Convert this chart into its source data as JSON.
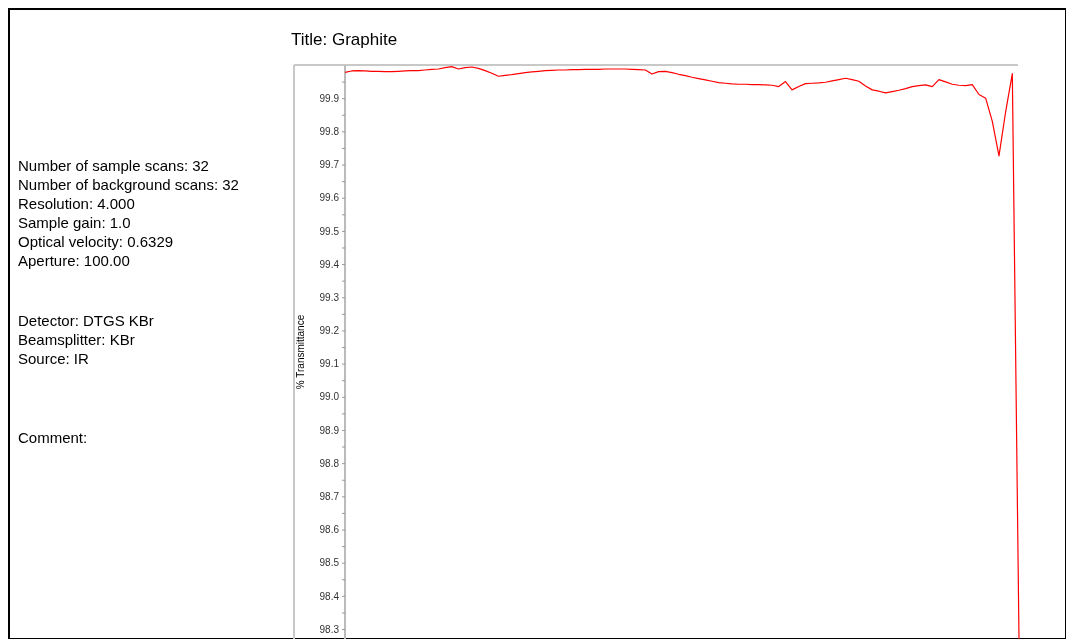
{
  "chart_data": {
    "type": "line",
    "title": "Title:  Graphite",
    "ylabel": "% Transmittance",
    "annotations": [
      "Number of sample scans:  32",
      "Number of background scans:  32",
      "Resolution:   4.000",
      "Sample gain:  1.0",
      "Optical velocity:  0.6329",
      "Aperture:  100.00",
      "Detector:  DTGS KBr",
      "Beamsplitter:  KBr",
      "Source:  IR",
      "Comment:"
    ],
    "categories": [
      null,
      null,
      null,
      null,
      null,
      null,
      null,
      null,
      null,
      null,
      null,
      null,
      null,
      null,
      null,
      null,
      null,
      null,
      null,
      null,
      null,
      null,
      null,
      null,
      null,
      null,
      null,
      null,
      null,
      null,
      null,
      null,
      null,
      null,
      null,
      null,
      null,
      null,
      null,
      null,
      null,
      null,
      null,
      null,
      null,
      null,
      null,
      null,
      null,
      null,
      null,
      null,
      null,
      null,
      null,
      null,
      null,
      null,
      null,
      null,
      null,
      null,
      null,
      null,
      null,
      null,
      null,
      null,
      null,
      null,
      null,
      null,
      null,
      null,
      null,
      null,
      null,
      null,
      null,
      null,
      null,
      null,
      null,
      null,
      null,
      null,
      null,
      null,
      null,
      null,
      null,
      null,
      null,
      null,
      null,
      null,
      null,
      null,
      null,
      null,
      null,
      null
    ],
    "ylim": [
      98.27,
      100.0
    ],
    "yticks": [
      {
        "value": 98.3,
        "label": "98.3"
      },
      {
        "value": 98.35,
        "label": null
      },
      {
        "value": 98.4,
        "label": "98.4"
      },
      {
        "value": 98.45,
        "label": null
      },
      {
        "value": 98.5,
        "label": "98.5"
      },
      {
        "value": 98.55,
        "label": null
      },
      {
        "value": 98.6,
        "label": "98.6"
      },
      {
        "value": 98.65,
        "label": null
      },
      {
        "value": 98.7,
        "label": "98.7"
      },
      {
        "value": 98.75,
        "label": null
      },
      {
        "value": 98.8,
        "label": "98.8"
      },
      {
        "value": 98.85,
        "label": null
      },
      {
        "value": 98.9,
        "label": "98.9"
      },
      {
        "value": 98.95,
        "label": null
      },
      {
        "value": 99.0,
        "label": "99.0"
      },
      {
        "value": 99.05,
        "label": null
      },
      {
        "value": 99.1,
        "label": "99.1"
      },
      {
        "value": 99.15,
        "label": null
      },
      {
        "value": 99.2,
        "label": "99.2"
      },
      {
        "value": 99.25,
        "label": null
      },
      {
        "value": 99.3,
        "label": "99.3"
      },
      {
        "value": 99.35,
        "label": null
      },
      {
        "value": 99.4,
        "label": "99.4"
      },
      {
        "value": 99.45,
        "label": null
      },
      {
        "value": 99.5,
        "label": "99.5"
      },
      {
        "value": 99.55,
        "label": null
      },
      {
        "value": 99.6,
        "label": "99.6"
      },
      {
        "value": 99.65,
        "label": null
      },
      {
        "value": 99.7,
        "label": "99.7"
      },
      {
        "value": 99.75,
        "label": null
      },
      {
        "value": 99.8,
        "label": "99.8"
      },
      {
        "value": 99.85,
        "label": null
      },
      {
        "value": 99.9,
        "label": "99.9"
      },
      {
        "value": 99.95,
        "label": null
      }
    ],
    "line_style": "solid",
    "series": [
      {
        "color": "#ff0000",
        "values": [
          99.978,
          99.982,
          99.983,
          99.982,
          99.981,
          99.981,
          99.98,
          99.98,
          99.981,
          99.982,
          99.983,
          99.983,
          99.985,
          99.987,
          99.988,
          99.992,
          99.995,
          99.988,
          99.992,
          99.994,
          99.99,
          99.983,
          99.975,
          99.966,
          99.969,
          99.971,
          99.974,
          99.977,
          99.979,
          99.981,
          99.983,
          99.984,
          99.985,
          99.985,
          99.986,
          99.986,
          99.987,
          99.987,
          99.987,
          99.988,
          99.988,
          99.988,
          99.988,
          99.987,
          99.986,
          99.985,
          99.973,
          99.98,
          99.981,
          99.977,
          99.972,
          99.968,
          99.963,
          99.959,
          99.955,
          99.951,
          99.947,
          99.945,
          99.943,
          99.942,
          99.942,
          99.941,
          99.941,
          99.94,
          99.939,
          99.935,
          99.95,
          99.925,
          99.935,
          99.944,
          99.945,
          99.946,
          99.948,
          99.952,
          99.956,
          99.96,
          99.956,
          99.951,
          99.937,
          99.925,
          99.921,
          99.916,
          99.92,
          99.924,
          99.929,
          99.935,
          99.938,
          99.94,
          99.935,
          99.956,
          99.949,
          99.942,
          99.939,
          99.938,
          99.941,
          99.911,
          99.9,
          99.83,
          99.726,
          99.859,
          99.974,
          98.27
        ]
      }
    ]
  }
}
